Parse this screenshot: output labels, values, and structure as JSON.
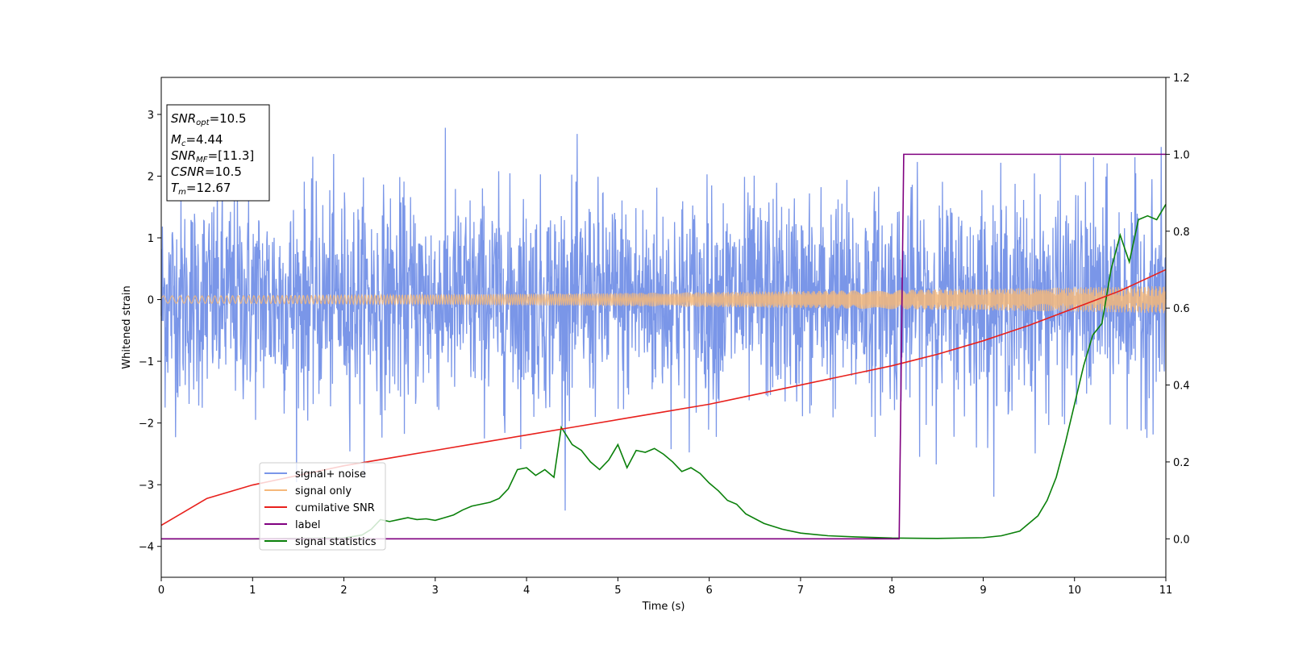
{
  "chart_data": {
    "type": "line",
    "xlabel": "Time (s)",
    "ylabel": "Whitened strain",
    "xlim": [
      0,
      11
    ],
    "ylim_left": [
      -4.5,
      3.6
    ],
    "ylim_right": [
      -0.1,
      1.2
    ],
    "x_ticks": [
      "0",
      "1",
      "2",
      "3",
      "4",
      "5",
      "6",
      "7",
      "8",
      "9",
      "10",
      "11"
    ],
    "y_left_ticks": [
      "−4",
      "−3",
      "−2",
      "−1",
      "0",
      "1",
      "2",
      "3"
    ],
    "y_left_tick_values": [
      -4,
      -3,
      -2,
      -1,
      0,
      1,
      2,
      3
    ],
    "y_right_ticks": [
      "0.0",
      "0.2",
      "0.4",
      "0.6",
      "0.8",
      "1.0",
      "1.2"
    ],
    "y_right_tick_values": [
      0,
      0.2,
      0.4,
      0.6,
      0.8,
      1.0,
      1.2
    ],
    "info_box": {
      "snr_opt": {
        "var": "SNR",
        "sub": "opt",
        "value": "=10.5"
      },
      "mc": {
        "var": "M",
        "sub": "c",
        "value": "=4.44"
      },
      "snr_mf": {
        "var": "SNR",
        "sub": "MF",
        "value": "=[11.3]"
      },
      "csnr": {
        "var": "CSNR",
        "sub": "",
        "value": "=10.5"
      },
      "tm": {
        "var": "T",
        "sub": "m",
        "value": "=12.67"
      }
    },
    "legend_position": "lower-left",
    "series": [
      {
        "name": "signal+ noise",
        "axis": "left",
        "color": "#7a96e8",
        "description_amplitude_std": 0.85
      },
      {
        "name": "signal only",
        "axis": "left",
        "color": "#f5b87a",
        "envelope": {
          "x": [
            0,
            11
          ],
          "amplitude": [
            0.06,
            0.22
          ]
        }
      },
      {
        "name": "cumilative SNR",
        "axis": "right",
        "color": "#e8201c",
        "x": [
          0,
          0.5,
          1,
          1.5,
          2,
          2.5,
          3,
          3.5,
          4,
          4.5,
          5,
          5.5,
          6,
          6.5,
          7,
          7.5,
          8,
          8.5,
          9,
          9.5,
          10,
          10.5,
          11
        ],
        "y": [
          0.035,
          0.105,
          0.14,
          0.165,
          0.19,
          0.21,
          0.23,
          0.25,
          0.27,
          0.29,
          0.31,
          0.33,
          0.35,
          0.375,
          0.4,
          0.425,
          0.45,
          0.48,
          0.515,
          0.555,
          0.6,
          0.645,
          0.7
        ]
      },
      {
        "name": "label",
        "axis": "right",
        "color": "#800080",
        "x": [
          0,
          8.08,
          8.13,
          11
        ],
        "y": [
          0,
          0,
          1.0,
          1.0
        ]
      },
      {
        "name": "signal statistics",
        "axis": "right",
        "color": "#0a800a",
        "x": [
          0,
          1,
          2,
          2.2,
          2.3,
          2.4,
          2.5,
          2.6,
          2.7,
          2.8,
          2.9,
          3.0,
          3.1,
          3.2,
          3.3,
          3.4,
          3.5,
          3.6,
          3.7,
          3.8,
          3.9,
          4.0,
          4.1,
          4.2,
          4.3,
          4.38,
          4.5,
          4.6,
          4.7,
          4.8,
          4.9,
          5.0,
          5.1,
          5.2,
          5.3,
          5.4,
          5.5,
          5.6,
          5.7,
          5.8,
          5.9,
          6.0,
          6.1,
          6.2,
          6.3,
          6.4,
          6.6,
          6.8,
          7.0,
          7.3,
          7.6,
          8.0,
          8.5,
          9.0,
          9.2,
          9.4,
          9.5,
          9.6,
          9.7,
          9.8,
          9.9,
          10.0,
          10.1,
          10.2,
          10.3,
          10.35,
          10.4,
          10.5,
          10.6,
          10.7,
          10.8,
          10.9,
          11.0
        ],
        "y": [
          0.0,
          0.0,
          0.002,
          0.01,
          0.025,
          0.05,
          0.045,
          0.05,
          0.055,
          0.05,
          0.052,
          0.048,
          0.055,
          0.062,
          0.075,
          0.085,
          0.09,
          0.095,
          0.105,
          0.13,
          0.18,
          0.185,
          0.165,
          0.18,
          0.16,
          0.29,
          0.245,
          0.23,
          0.2,
          0.18,
          0.205,
          0.245,
          0.185,
          0.23,
          0.225,
          0.235,
          0.22,
          0.2,
          0.175,
          0.185,
          0.17,
          0.145,
          0.125,
          0.1,
          0.09,
          0.065,
          0.04,
          0.025,
          0.015,
          0.008,
          0.005,
          0.002,
          0.001,
          0.003,
          0.008,
          0.02,
          0.04,
          0.06,
          0.1,
          0.16,
          0.25,
          0.35,
          0.45,
          0.53,
          0.56,
          0.63,
          0.7,
          0.79,
          0.72,
          0.83,
          0.84,
          0.83,
          0.87
        ]
      }
    ]
  }
}
